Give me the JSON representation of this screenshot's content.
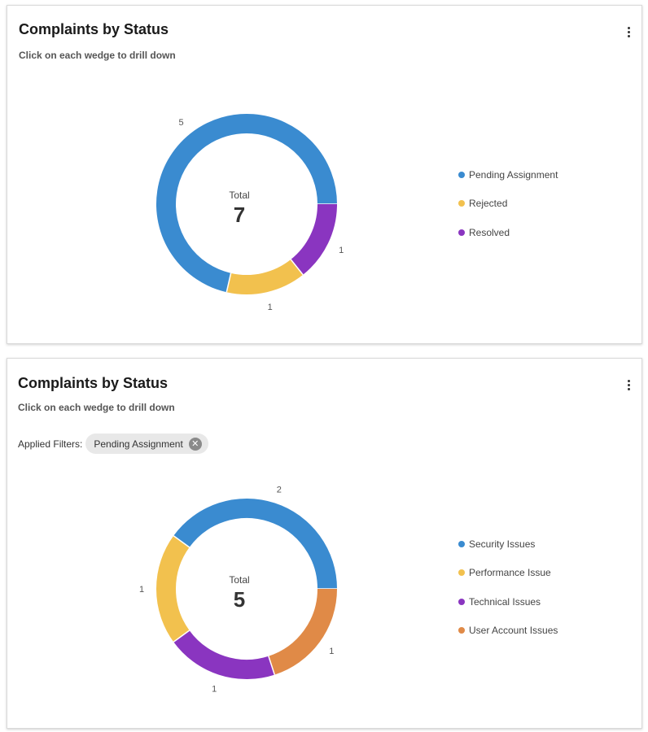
{
  "cards": [
    {
      "title": "Complaints by Status",
      "subtitle": "Click on each wedge to drill down",
      "total_label": "Total",
      "total_value": "7",
      "legend": [
        "Pending Assignment",
        "Rejected",
        "Resolved"
      ]
    },
    {
      "title": "Complaints by Status",
      "subtitle": "Click on each wedge to drill down",
      "filters_label": "Applied Filters:",
      "filter_chip": "Pending Assignment",
      "total_label": "Total",
      "total_value": "5",
      "legend": [
        "Security Issues",
        "Performance Issue",
        "Technical Issues",
        "User Account Issues"
      ]
    }
  ],
  "icons": {
    "menu": "more-vertical-icon",
    "chip_close": "close-circle-icon"
  },
  "colors": {
    "blue": "#3a8bd0",
    "yellow": "#f2c14e",
    "purple": "#8a35c0",
    "orange": "#e08a47"
  },
  "chart_data": [
    {
      "type": "pie",
      "categories": [
        "Pending Assignment",
        "Rejected",
        "Resolved"
      ],
      "values": [
        5,
        1,
        1
      ],
      "colors": [
        "#3a8bd0",
        "#f2c14e",
        "#8a35c0"
      ],
      "value_labels": [
        "5",
        "1",
        "1"
      ],
      "legend_placement": "right",
      "donut": true
    },
    {
      "type": "pie",
      "categories": [
        "Security Issues",
        "Performance Issue",
        "Technical Issues",
        "User Account Issues"
      ],
      "values": [
        2,
        1,
        1,
        1
      ],
      "colors": [
        "#3a8bd0",
        "#f2c14e",
        "#8a35c0",
        "#e08a47"
      ],
      "value_labels": [
        "2",
        "1",
        "1",
        "1"
      ],
      "legend_placement": "right",
      "donut": true
    }
  ]
}
